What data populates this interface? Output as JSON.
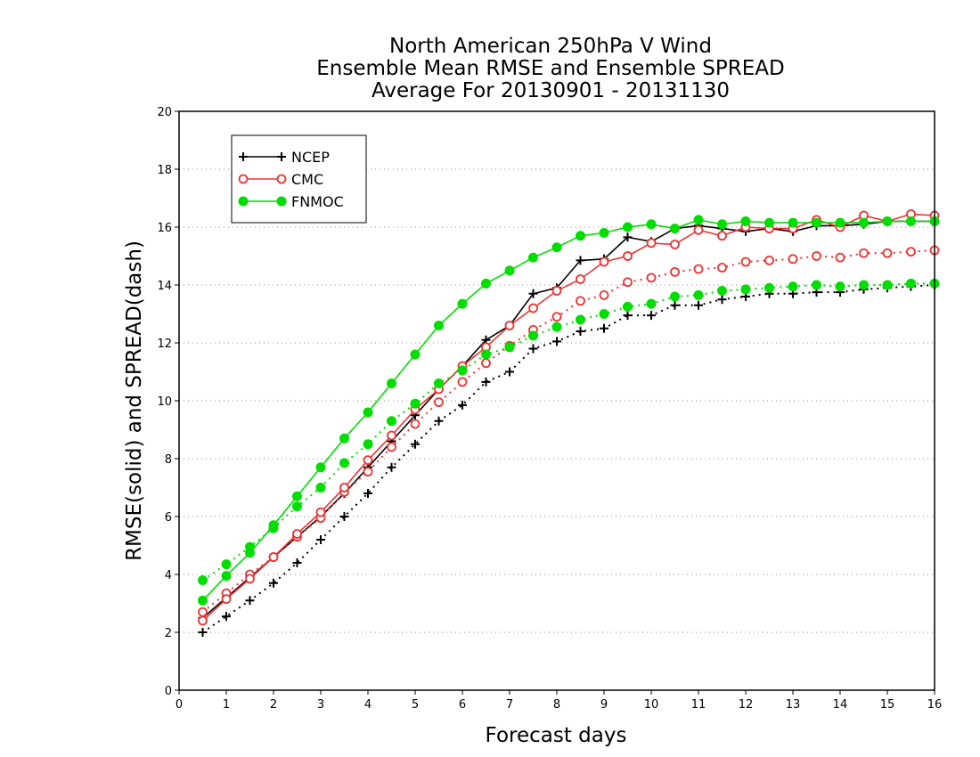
{
  "chart_data": {
    "type": "line",
    "title": [
      "North American 250hPa V Wind",
      "Ensemble Mean RMSE and Ensemble SPREAD",
      "Average For 20130901 - 20131130"
    ],
    "xlabel": "Forecast days",
    "ylabel": "RMSE(solid) and SPREAD(dash)",
    "xlim": [
      0,
      16
    ],
    "ylim": [
      0,
      20
    ],
    "xticks": [
      "0",
      "1",
      "2",
      "3",
      "4",
      "5",
      "6",
      "7",
      "8",
      "9",
      "10",
      "11",
      "12",
      "13",
      "14",
      "15",
      "16"
    ],
    "yticks": [
      "0",
      "2",
      "4",
      "6",
      "8",
      "10",
      "12",
      "14",
      "16",
      "18",
      "20"
    ],
    "grid": true,
    "legend_position": "top-left",
    "x": [
      0.5,
      1,
      1.5,
      2,
      2.5,
      3,
      3.5,
      4,
      4.5,
      5,
      5.5,
      6,
      6.5,
      7,
      7.5,
      8,
      8.5,
      9,
      9.5,
      10,
      10.5,
      11,
      11.5,
      12,
      12.5,
      13,
      13.5,
      14,
      14.5,
      15,
      15.5,
      16
    ],
    "series": [
      {
        "name": "NCEP",
        "color": "#000000",
        "marker": "plus",
        "rmse": [
          2.5,
          3.2,
          3.9,
          4.6,
          5.3,
          6.0,
          6.8,
          7.7,
          8.6,
          9.5,
          10.4,
          11.2,
          12.1,
          12.6,
          13.7,
          13.9,
          14.85,
          14.9,
          15.65,
          15.5,
          15.95,
          16.05,
          15.95,
          15.85,
          15.95,
          15.85,
          16.05,
          16.05,
          16.1,
          16.2,
          16.2,
          16.2
        ],
        "spread": [
          2.0,
          2.55,
          3.1,
          3.7,
          4.4,
          5.2,
          6.0,
          6.8,
          7.7,
          8.5,
          9.3,
          9.85,
          10.65,
          11.0,
          11.8,
          12.05,
          12.4,
          12.5,
          12.95,
          12.95,
          13.3,
          13.3,
          13.5,
          13.6,
          13.7,
          13.7,
          13.75,
          13.75,
          13.85,
          13.9,
          13.95,
          14.0
        ]
      },
      {
        "name": "CMC",
        "color": "#ee3333",
        "marker": "circle",
        "rmse": [
          2.4,
          3.15,
          3.85,
          4.6,
          5.4,
          6.15,
          7.0,
          7.95,
          8.8,
          9.7,
          10.4,
          11.2,
          11.85,
          12.6,
          13.2,
          13.8,
          14.2,
          14.8,
          15.0,
          15.45,
          15.4,
          15.9,
          15.7,
          16.0,
          15.95,
          15.95,
          16.25,
          16.0,
          16.4,
          16.2,
          16.45,
          16.4
        ],
        "spread": [
          2.7,
          3.35,
          4.0,
          4.6,
          5.3,
          5.95,
          6.85,
          7.55,
          8.4,
          9.2,
          9.95,
          10.65,
          11.3,
          11.9,
          12.45,
          12.9,
          13.45,
          13.65,
          14.1,
          14.25,
          14.45,
          14.55,
          14.6,
          14.8,
          14.85,
          14.9,
          15.0,
          14.95,
          15.1,
          15.1,
          15.15,
          15.2
        ]
      },
      {
        "name": "FNMOC",
        "color": "#00dd00",
        "marker": "dot",
        "rmse": [
          3.1,
          3.95,
          4.75,
          5.7,
          6.7,
          7.7,
          8.7,
          9.6,
          10.6,
          11.6,
          12.6,
          13.35,
          14.05,
          14.5,
          14.95,
          15.3,
          15.7,
          15.8,
          16.0,
          16.1,
          15.95,
          16.25,
          16.1,
          16.2,
          16.15,
          16.15,
          16.15,
          16.15,
          16.15,
          16.2,
          16.2,
          16.2
        ],
        "spread": [
          3.8,
          4.35,
          4.95,
          5.6,
          6.35,
          7.0,
          7.85,
          8.5,
          9.3,
          9.9,
          10.6,
          11.05,
          11.6,
          11.85,
          12.25,
          12.55,
          12.8,
          13.0,
          13.25,
          13.35,
          13.6,
          13.65,
          13.8,
          13.85,
          13.9,
          13.95,
          14.0,
          13.95,
          14.0,
          14.0,
          14.05,
          14.05
        ]
      }
    ]
  }
}
